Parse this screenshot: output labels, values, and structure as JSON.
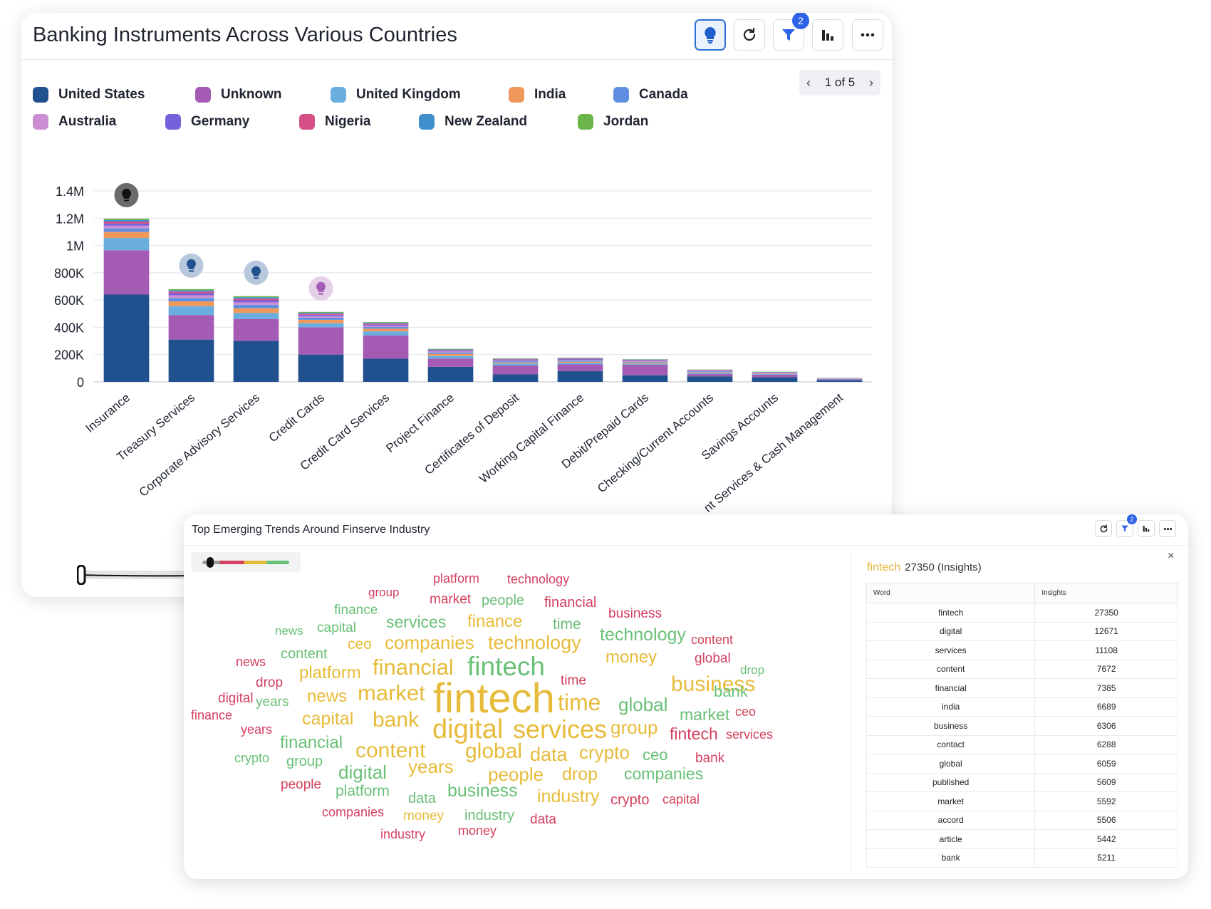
{
  "top_card": {
    "title": "Banking Instruments Across Various Countries",
    "filter_badge": "2",
    "pager": "1 of 5",
    "legend": [
      {
        "label": "United States",
        "color": "#20508e"
      },
      {
        "label": "Unknown",
        "color": "#a45bb3"
      },
      {
        "label": "United Kingdom",
        "color": "#6aaee0"
      },
      {
        "label": "India",
        "color": "#f0985a"
      },
      {
        "label": "Canada",
        "color": "#5e8ee0"
      },
      {
        "label": "Australia",
        "color": "#cc8dd2"
      },
      {
        "label": "Germany",
        "color": "#7760dc"
      },
      {
        "label": "Nigeria",
        "color": "#d44f86"
      },
      {
        "label": "New Zealand",
        "color": "#3e8fcc"
      },
      {
        "label": "Jordan",
        "color": "#6cb54a"
      }
    ]
  },
  "chart_data": {
    "type": "bar",
    "stacked": true,
    "y_ticks": [
      "0",
      "200K",
      "400K",
      "600K",
      "800K",
      "1M",
      "1.2M",
      "1.4M"
    ],
    "ylim": [
      0,
      1400000
    ],
    "grid": true,
    "categories": [
      "Insurance",
      "Treasury Services",
      "Corporate Advisory Services",
      "Credit Cards",
      "Credit Card Services",
      "Project Finance",
      "Certificates of Deposit",
      "Working Capital Finance",
      "Debit/Prepaid Cards",
      "Checking/Current Accounts",
      "Savings Accounts",
      "nt Services & Cash Management"
    ],
    "insight_markers": [
      {
        "category": "Insurance",
        "color": "#6b6b6b"
      },
      {
        "category": "Treasury Services",
        "color": "#b7c8dc"
      },
      {
        "category": "Corporate Advisory Services",
        "color": "#b7c8dc"
      },
      {
        "category": "Credit Cards",
        "color": "#e6cfe8"
      }
    ],
    "series": [
      {
        "name": "United States",
        "values": [
          640000,
          310000,
          300000,
          200000,
          170000,
          110000,
          55000,
          78000,
          48000,
          40000,
          35000,
          12000
        ]
      },
      {
        "name": "Unknown",
        "values": [
          325000,
          180000,
          160000,
          200000,
          170000,
          60000,
          65000,
          50000,
          78000,
          18000,
          18000,
          6000
        ]
      },
      {
        "name": "United Kingdom",
        "values": [
          90000,
          65000,
          45000,
          30000,
          30000,
          20000,
          15000,
          12000,
          8000,
          8000,
          5000,
          3000
        ]
      },
      {
        "name": "India",
        "values": [
          45000,
          35000,
          35000,
          25000,
          20000,
          15000,
          8000,
          8000,
          8000,
          5000,
          4000,
          2000
        ]
      },
      {
        "name": "Canada",
        "values": [
          25000,
          25000,
          25000,
          15000,
          12000,
          10000,
          8000,
          8000,
          6000,
          5000,
          3000,
          1000
        ]
      },
      {
        "name": "Australia",
        "values": [
          20000,
          20000,
          18000,
          12000,
          10000,
          8000,
          6000,
          6000,
          5000,
          4000,
          3000,
          1000
        ]
      },
      {
        "name": "Germany",
        "values": [
          15000,
          15000,
          15000,
          10000,
          8000,
          6000,
          5000,
          5000,
          4000,
          3000,
          2000,
          1000
        ]
      },
      {
        "name": "Nigeria",
        "values": [
          15000,
          12000,
          12000,
          8000,
          7000,
          5000,
          4000,
          4000,
          4000,
          3000,
          2000,
          1000
        ]
      },
      {
        "name": "New Zealand",
        "values": [
          12000,
          10000,
          10000,
          7000,
          6000,
          4000,
          3000,
          3000,
          3000,
          2000,
          2000,
          1000
        ]
      },
      {
        "name": "Jordan",
        "values": [
          10000,
          8000,
          8000,
          6000,
          5000,
          4000,
          3000,
          3000,
          2000,
          2000,
          1000,
          1000
        ]
      }
    ]
  },
  "bottom_card": {
    "title": "Top Emerging Trends Around Finserve Industry",
    "filter_badge": "2",
    "close_label": "×",
    "selected_word": "fintech",
    "selected_detail": "27350 (Insights)",
    "table_headers": [
      "Word",
      "Insights"
    ],
    "table_rows": [
      [
        "fintech",
        "27350"
      ],
      [
        "digital",
        "12671"
      ],
      [
        "services",
        "11108"
      ],
      [
        "content",
        "7672"
      ],
      [
        "financial",
        "7385"
      ],
      [
        "india",
        "6689"
      ],
      [
        "business",
        "6306"
      ],
      [
        "contact",
        "6288"
      ],
      [
        "global",
        "6059"
      ],
      [
        "published",
        "5609"
      ],
      [
        "market",
        "5592"
      ],
      [
        "accord",
        "5506"
      ],
      [
        "article",
        "5442"
      ],
      [
        "bank",
        "5211"
      ]
    ]
  },
  "wordcloud": [
    {
      "t": "platform",
      "c": "#d4405f",
      "s": 18
    },
    {
      "t": "technology",
      "c": "#d4405f",
      "s": 18
    },
    {
      "t": "group",
      "c": "#d4405f",
      "s": 17
    },
    {
      "t": "market",
      "c": "#d4405f",
      "s": 19
    },
    {
      "t": "people",
      "c": "#69c077",
      "s": 20
    },
    {
      "t": "financial",
      "c": "#d4405f",
      "s": 20
    },
    {
      "t": "business",
      "c": "#d4405f",
      "s": 19
    },
    {
      "t": "finance",
      "c": "#69c077",
      "s": 19
    },
    {
      "t": "news",
      "c": "#69c077",
      "s": 17
    },
    {
      "t": "capital",
      "c": "#69c077",
      "s": 19
    },
    {
      "t": "services",
      "c": "#69c077",
      "s": 23
    },
    {
      "t": "finance",
      "c": "#e7bb3a",
      "s": 24
    },
    {
      "t": "time",
      "c": "#69c077",
      "s": 21
    },
    {
      "t": "technology",
      "c": "#69c077",
      "s": 25
    },
    {
      "t": "content",
      "c": "#d4405f",
      "s": 18
    },
    {
      "t": "ceo",
      "c": "#e7bb3a",
      "s": 21
    },
    {
      "t": "companies",
      "c": "#e7bb3a",
      "s": 26
    },
    {
      "t": "technology",
      "c": "#e7bb3a",
      "s": 27
    },
    {
      "t": "global",
      "c": "#d4405f",
      "s": 19
    },
    {
      "t": "news",
      "c": "#d4405f",
      "s": 18
    },
    {
      "t": "content",
      "c": "#69c077",
      "s": 20
    },
    {
      "t": "money",
      "c": "#e7bb3a",
      "s": 24
    },
    {
      "t": "drop",
      "c": "#69c077",
      "s": 17
    },
    {
      "t": "platform",
      "c": "#e7bb3a",
      "s": 24
    },
    {
      "t": "financial",
      "c": "#e7bb3a",
      "s": 31
    },
    {
      "t": "fintech",
      "c": "#69c077",
      "s": 37
    },
    {
      "t": "time",
      "c": "#d4405f",
      "s": 19
    },
    {
      "t": "business",
      "c": "#e7bb3a",
      "s": 30
    },
    {
      "t": "bank",
      "c": "#69c077",
      "s": 22
    },
    {
      "t": "digital",
      "c": "#d4405f",
      "s": 19
    },
    {
      "t": "drop",
      "c": "#d4405f",
      "s": 19
    },
    {
      "t": "news",
      "c": "#e7bb3a",
      "s": 24
    },
    {
      "t": "market",
      "c": "#e7bb3a",
      "s": 31
    },
    {
      "t": "fintech",
      "c": "#e7bb3a",
      "s": 58
    },
    {
      "t": "time",
      "c": "#e7bb3a",
      "s": 32
    },
    {
      "t": "global",
      "c": "#69c077",
      "s": 26
    },
    {
      "t": "market",
      "c": "#69c077",
      "s": 23
    },
    {
      "t": "ceo",
      "c": "#d4405f",
      "s": 18
    },
    {
      "t": "years",
      "c": "#69c077",
      "s": 19
    },
    {
      "t": "finance",
      "c": "#d4405f",
      "s": 18
    },
    {
      "t": "capital",
      "c": "#e7bb3a",
      "s": 25
    },
    {
      "t": "bank",
      "c": "#e7bb3a",
      "s": 30
    },
    {
      "t": "digital",
      "c": "#e7bb3a",
      "s": 38
    },
    {
      "t": "services",
      "c": "#e7bb3a",
      "s": 36
    },
    {
      "t": "group",
      "c": "#e7bb3a",
      "s": 26
    },
    {
      "t": "fintech",
      "c": "#d4405f",
      "s": 23
    },
    {
      "t": "services",
      "c": "#d4405f",
      "s": 18
    },
    {
      "t": "years",
      "c": "#d4405f",
      "s": 18
    },
    {
      "t": "financial",
      "c": "#69c077",
      "s": 24
    },
    {
      "t": "content",
      "c": "#e7bb3a",
      "s": 30
    },
    {
      "t": "crypto",
      "c": "#69c077",
      "s": 18
    },
    {
      "t": "group",
      "c": "#69c077",
      "s": 20
    },
    {
      "t": "global",
      "c": "#e7bb3a",
      "s": 30
    },
    {
      "t": "data",
      "c": "#e7bb3a",
      "s": 27
    },
    {
      "t": "crypto",
      "c": "#e7bb3a",
      "s": 26
    },
    {
      "t": "ceo",
      "c": "#69c077",
      "s": 22
    },
    {
      "t": "bank",
      "c": "#d4405f",
      "s": 19
    },
    {
      "t": "digital",
      "c": "#69c077",
      "s": 26
    },
    {
      "t": "years",
      "c": "#e7bb3a",
      "s": 26
    },
    {
      "t": "people",
      "c": "#e7bb3a",
      "s": 26
    },
    {
      "t": "drop",
      "c": "#e7bb3a",
      "s": 25
    },
    {
      "t": "companies",
      "c": "#69c077",
      "s": 23
    },
    {
      "t": "people",
      "c": "#d4405f",
      "s": 19
    },
    {
      "t": "platform",
      "c": "#69c077",
      "s": 21
    },
    {
      "t": "data",
      "c": "#69c077",
      "s": 20
    },
    {
      "t": "business",
      "c": "#69c077",
      "s": 25
    },
    {
      "t": "industry",
      "c": "#e7bb3a",
      "s": 25
    },
    {
      "t": "crypto",
      "c": "#d4405f",
      "s": 20
    },
    {
      "t": "capital",
      "c": "#d4405f",
      "s": 18
    },
    {
      "t": "companies",
      "c": "#d4405f",
      "s": 18
    },
    {
      "t": "money",
      "c": "#e7bb3a",
      "s": 19
    },
    {
      "t": "industry",
      "c": "#69c077",
      "s": 20
    },
    {
      "t": "data",
      "c": "#d4405f",
      "s": 19
    },
    {
      "t": "industry",
      "c": "#d4405f",
      "s": 18
    },
    {
      "t": "money",
      "c": "#d4405f",
      "s": 18
    }
  ]
}
